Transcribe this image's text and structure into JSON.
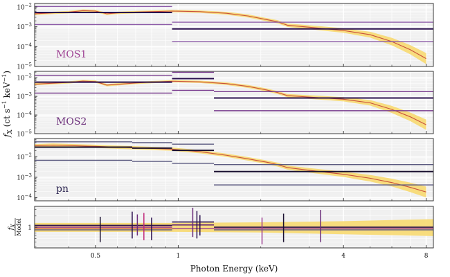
{
  "chart_data": {
    "type": "line",
    "xscale": "log",
    "xlim": [
      0.3,
      8.5
    ],
    "xlabel": "Photon Energy (keV)",
    "xticks": [
      0.5,
      1,
      4,
      8
    ],
    "xtick_labels": [
      "0.5",
      "1",
      "4",
      "8"
    ],
    "ylabel": "f_X (ct s^-1 keV^-1)",
    "ylabel_parts": {
      "main": "f",
      "sub": "X",
      "units": "(ct s",
      "units_exp": "−1",
      "units_mid": " keV",
      "units_end": ")"
    },
    "grid": true,
    "colors": {
      "model_band": "#f7d970",
      "model_line": "#c94f3c",
      "panel_bg": "#f0f0f0"
    },
    "panels": [
      {
        "label": "MOS1",
        "label_color": "#9c3d91",
        "yscale": "log",
        "ylim": [
          1e-05,
          0.015
        ],
        "ytick_values": [
          1e-05,
          0.0001,
          0.001,
          0.01
        ],
        "ytick_base": [
          "10",
          "10",
          "10",
          "10"
        ],
        "ytick_exp": [
          "−5",
          "−4",
          "−3",
          "−2"
        ],
        "model": {
          "energy": [
            0.3,
            0.4,
            0.45,
            0.5,
            0.55,
            0.6,
            0.7,
            0.8,
            0.95,
            1.2,
            1.5,
            1.8,
            2.1,
            2.3,
            2.5,
            3.0,
            4.0,
            5.0,
            6.0,
            7.0,
            8.0
          ],
          "value": [
            0.0045,
            0.0055,
            0.0065,
            0.0062,
            0.0045,
            0.005,
            0.0055,
            0.0058,
            0.0062,
            0.0058,
            0.0048,
            0.0035,
            0.0023,
            0.0018,
            0.0012,
            0.00095,
            0.00065,
            0.0004,
            0.00018,
            7e-05,
            2.5e-05
          ],
          "band_factor": [
            1.15,
            1.15,
            1.15,
            1.15,
            1.15,
            1.15,
            1.15,
            1.15,
            1.15,
            1.15,
            1.18,
            1.2,
            1.2,
            1.2,
            1.22,
            1.25,
            1.3,
            1.4,
            1.55,
            1.7,
            1.9
          ]
        },
        "lines": [
          {
            "e0": 0.3,
            "e1": 0.95,
            "y": 0.0105,
            "color": "#8c5aa8",
            "width": 1.4
          },
          {
            "e0": 0.3,
            "e1": 0.95,
            "y": 0.0053,
            "color": "#2a0f4e",
            "width": 2
          },
          {
            "e0": 0.3,
            "e1": 0.95,
            "y": 0.0013,
            "color": "#8c5aa8",
            "width": 1.4
          },
          {
            "e0": 0.95,
            "e1": 8.5,
            "y": 0.0017,
            "color": "#8c5aa8",
            "width": 1.4
          },
          {
            "e0": 0.95,
            "e1": 8.5,
            "y": 0.00078,
            "color": "#2a0f4e",
            "width": 2
          },
          {
            "e0": 0.95,
            "e1": 8.5,
            "y": 0.00018,
            "color": "#8c5aa8",
            "width": 1.4
          }
        ]
      },
      {
        "label": "MOS2",
        "label_color": "#6b2d7a",
        "yscale": "log",
        "ylim": [
          1e-05,
          0.022
        ],
        "ytick_values": [
          1e-05,
          0.0001,
          0.001,
          0.01
        ],
        "ytick_base": [
          "10",
          "10",
          "10",
          "10"
        ],
        "ytick_exp": [
          "−5",
          "−4",
          "−3",
          "−2"
        ],
        "model": {
          "energy": [
            0.3,
            0.4,
            0.45,
            0.5,
            0.55,
            0.6,
            0.7,
            0.8,
            0.95,
            1.2,
            1.5,
            1.8,
            2.1,
            2.3,
            2.5,
            3.0,
            4.0,
            5.0,
            6.0,
            7.0,
            8.0
          ],
          "value": [
            0.0045,
            0.0056,
            0.0066,
            0.0062,
            0.004,
            0.0044,
            0.0052,
            0.0058,
            0.0065,
            0.006,
            0.0048,
            0.0034,
            0.0022,
            0.0016,
            0.0011,
            0.00092,
            0.0007,
            0.00045,
            0.0002,
            8e-05,
            3e-05
          ],
          "band_factor": [
            1.15,
            1.15,
            1.15,
            1.15,
            1.15,
            1.15,
            1.15,
            1.15,
            1.15,
            1.15,
            1.18,
            1.2,
            1.2,
            1.2,
            1.22,
            1.25,
            1.3,
            1.4,
            1.55,
            1.7,
            1.9
          ]
        },
        "lines": [
          {
            "e0": 0.3,
            "e1": 0.95,
            "y": 0.0135,
            "color": "#7a3d8f",
            "width": 1.4
          },
          {
            "e0": 0.3,
            "e1": 0.95,
            "y": 0.0058,
            "color": "#2a0f4e",
            "width": 2
          },
          {
            "e0": 0.3,
            "e1": 0.95,
            "y": 0.0015,
            "color": "#7a3d8f",
            "width": 1.4
          },
          {
            "e0": 0.95,
            "e1": 1.35,
            "y": 0.0195,
            "color": "#7a3d8f",
            "width": 1.4
          },
          {
            "e0": 0.95,
            "e1": 1.35,
            "y": 0.009,
            "color": "#2a0f4e",
            "width": 2
          },
          {
            "e0": 0.95,
            "e1": 1.35,
            "y": 0.0021,
            "color": "#7a3d8f",
            "width": 1.4
          },
          {
            "e0": 1.35,
            "e1": 8.5,
            "y": 0.0018,
            "color": "#7a3d8f",
            "width": 1.4
          },
          {
            "e0": 1.35,
            "e1": 8.5,
            "y": 0.00082,
            "color": "#2a0f4e",
            "width": 2
          },
          {
            "e0": 1.35,
            "e1": 8.5,
            "y": 0.00017,
            "color": "#7a3d8f",
            "width": 1.4
          }
        ]
      },
      {
        "label": "pn",
        "label_color": "#2b2450",
        "yscale": "log",
        "ylim": [
          7e-05,
          0.08
        ],
        "ytick_values": [
          0.0001,
          0.001,
          0.01
        ],
        "ytick_base": [
          "10",
          "10",
          "10"
        ],
        "ytick_exp": [
          "−4",
          "−3",
          "−2"
        ],
        "model": {
          "energy": [
            0.3,
            0.35,
            0.4,
            0.5,
            0.6,
            0.7,
            0.8,
            0.95,
            1.2,
            1.5,
            1.8,
            2.1,
            2.3,
            2.5,
            3.0,
            4.0,
            5.0,
            6.0,
            7.0,
            8.0
          ],
          "value": [
            0.035,
            0.038,
            0.036,
            0.033,
            0.03,
            0.028,
            0.026,
            0.024,
            0.018,
            0.012,
            0.008,
            0.0055,
            0.0042,
            0.003,
            0.0022,
            0.0014,
            0.0009,
            0.00055,
            0.00032,
            0.00019
          ],
          "band_factor": [
            1.2,
            1.2,
            1.2,
            1.2,
            1.2,
            1.2,
            1.2,
            1.2,
            1.2,
            1.2,
            1.22,
            1.22,
            1.25,
            1.25,
            1.3,
            1.35,
            1.45,
            1.55,
            1.7,
            1.85
          ]
        },
        "lines": [
          {
            "e0": 0.3,
            "e1": 0.68,
            "y": 0.055,
            "color": "#5b5a80",
            "width": 1.4
          },
          {
            "e0": 0.3,
            "e1": 0.68,
            "y": 0.03,
            "color": "#1a1030",
            "width": 2
          },
          {
            "e0": 0.3,
            "e1": 0.68,
            "y": 0.0068,
            "color": "#5b5a80",
            "width": 1.4
          },
          {
            "e0": 0.68,
            "e1": 0.95,
            "y": 0.05,
            "color": "#5b5a80",
            "width": 1.4
          },
          {
            "e0": 0.68,
            "e1": 0.95,
            "y": 0.027,
            "color": "#1a1030",
            "width": 2
          },
          {
            "e0": 0.68,
            "e1": 0.95,
            "y": 0.006,
            "color": "#5b5a80",
            "width": 1.4
          },
          {
            "e0": 0.95,
            "e1": 1.35,
            "y": 0.042,
            "color": "#5b5a80",
            "width": 1.4
          },
          {
            "e0": 0.95,
            "e1": 1.35,
            "y": 0.021,
            "color": "#1a1030",
            "width": 2
          },
          {
            "e0": 0.95,
            "e1": 1.35,
            "y": 0.0048,
            "color": "#5b5a80",
            "width": 1.4
          },
          {
            "e0": 1.35,
            "e1": 8.5,
            "y": 0.0042,
            "color": "#5b5a80",
            "width": 1.4
          },
          {
            "e0": 1.35,
            "e1": 8.5,
            "y": 0.0019,
            "color": "#1a1030",
            "width": 2
          },
          {
            "e0": 1.35,
            "e1": 8.5,
            "y": 0.00042,
            "color": "#5b5a80",
            "width": 1.4
          }
        ]
      },
      {
        "label": "",
        "ratio": true,
        "ylabel_frac_num": "f",
        "ylabel_frac_num_sub": "X",
        "ylabel_frac_den": "Model",
        "yscale": "log",
        "ylim": [
          0.28,
          3.6
        ],
        "ytick_values": [
          1
        ],
        "ytick_labels": [
          "1"
        ],
        "band": {
          "energy": [
            0.3,
            1.0,
            2.0,
            4.0,
            8.5
          ],
          "lo": [
            0.75,
            0.75,
            0.72,
            0.65,
            0.58
          ],
          "hi": [
            1.3,
            1.3,
            1.35,
            1.45,
            1.65
          ]
        },
        "lines": [
          {
            "e0": 0.3,
            "e1": 0.95,
            "y": 1.12,
            "color": "#2a0f4e",
            "width": 1.6
          },
          {
            "e0": 0.3,
            "e1": 0.95,
            "y": 1.0,
            "color": "#9c3d91",
            "width": 1.6
          },
          {
            "e0": 0.3,
            "e1": 0.95,
            "y": 0.92,
            "color": "#c94f3c",
            "width": 1.2
          },
          {
            "e0": 0.3,
            "e1": 0.95,
            "y": 0.85,
            "color": "#5b5a80",
            "width": 1.4
          },
          {
            "e0": 0.95,
            "e1": 1.35,
            "y": 1.38,
            "color": "#2a0f4e",
            "width": 1.6
          },
          {
            "e0": 0.95,
            "e1": 1.35,
            "y": 1.15,
            "color": "#6b2d7a",
            "width": 1.6
          },
          {
            "e0": 0.95,
            "e1": 1.35,
            "y": 0.92,
            "color": "#9c3d91",
            "width": 1.4
          },
          {
            "e0": 1.35,
            "e1": 8.5,
            "y": 1.0,
            "color": "#2a0f4e",
            "width": 1.6
          },
          {
            "e0": 1.35,
            "e1": 8.5,
            "y": 0.92,
            "color": "#9c3d91",
            "width": 1.4
          },
          {
            "e0": 1.35,
            "e1": 8.5,
            "y": 0.85,
            "color": "#5b5a80",
            "width": 1.4
          }
        ],
        "error_bars": [
          {
            "e": 0.52,
            "lo": 0.4,
            "hi": 1.9,
            "color": "#1a1030"
          },
          {
            "e": 0.68,
            "lo": 0.5,
            "hi": 2.6,
            "color": "#2a0f4e"
          },
          {
            "e": 0.71,
            "lo": 0.6,
            "hi": 2.2,
            "color": "#6b2d7a"
          },
          {
            "e": 0.75,
            "lo": 0.45,
            "hi": 2.4,
            "color": "#c02a7a"
          },
          {
            "e": 0.8,
            "lo": 0.45,
            "hi": 1.8,
            "color": "#2a0f4e"
          },
          {
            "e": 1.13,
            "lo": 0.55,
            "hi": 3.3,
            "color": "#6b2d7a"
          },
          {
            "e": 1.17,
            "lo": 0.5,
            "hi": 2.7,
            "color": "#2a0f4e"
          },
          {
            "e": 1.2,
            "lo": 0.6,
            "hi": 2.1,
            "color": "#2a0f4e"
          },
          {
            "e": 2.02,
            "lo": 0.35,
            "hi": 1.8,
            "color": "#9c3d91"
          },
          {
            "e": 2.42,
            "lo": 0.4,
            "hi": 2.3,
            "color": "#1a1030"
          },
          {
            "e": 3.3,
            "lo": 0.4,
            "hi": 2.9,
            "color": "#6b2d7a"
          }
        ]
      }
    ]
  }
}
